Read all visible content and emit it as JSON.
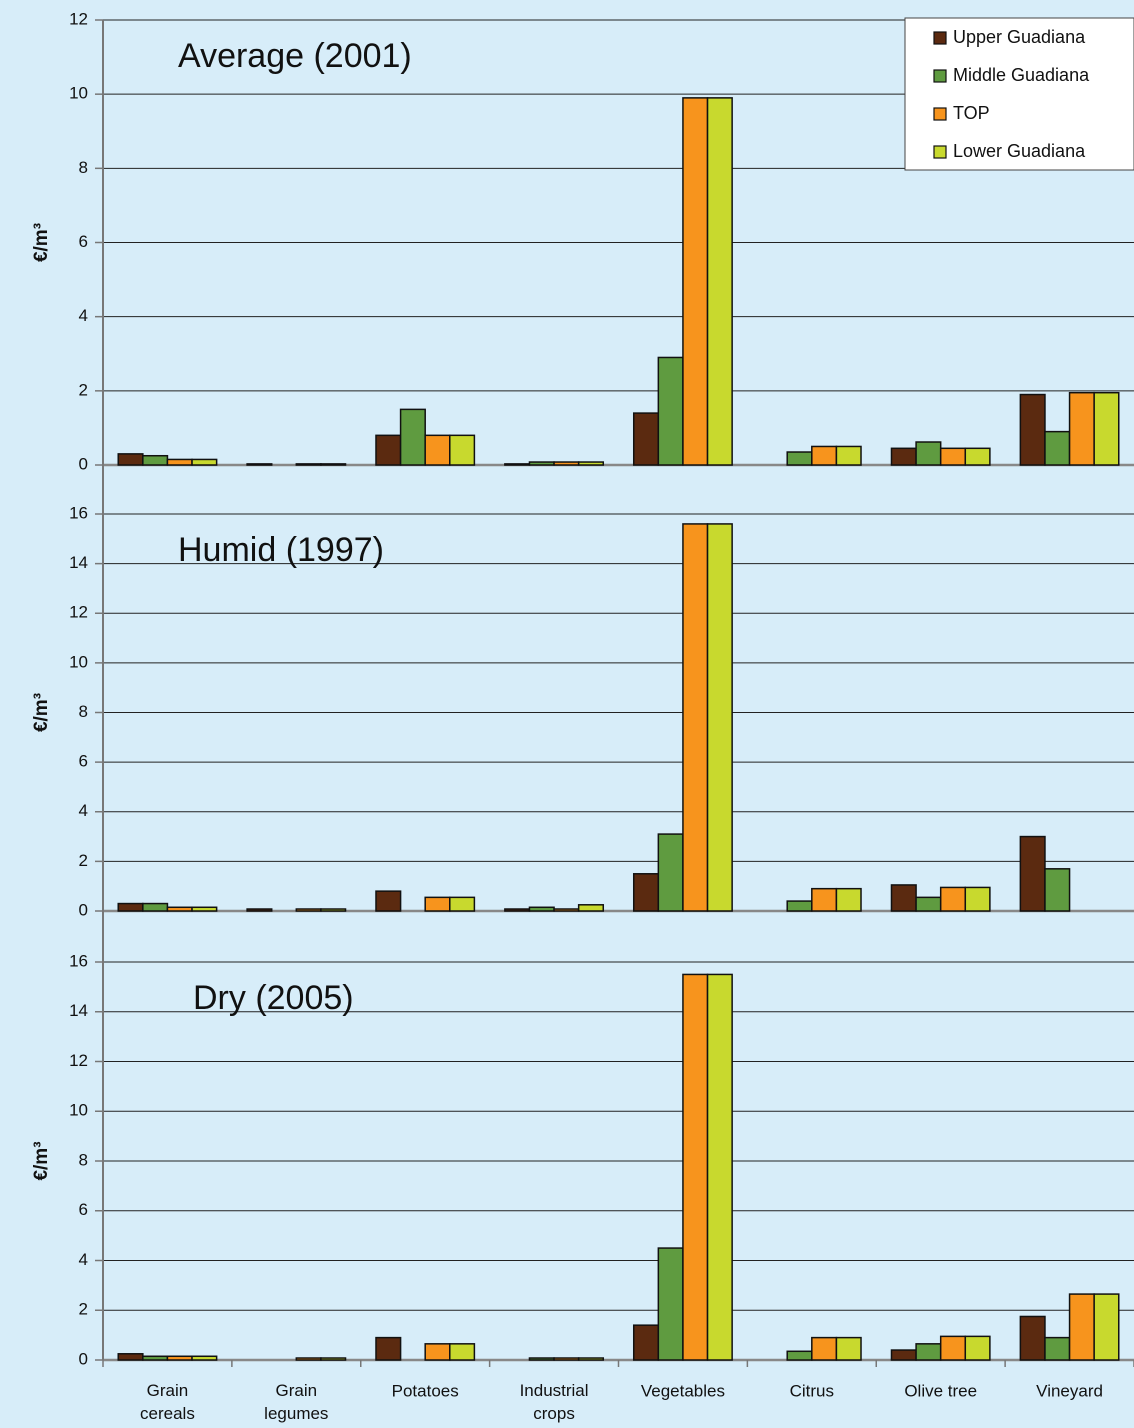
{
  "chart_data": [
    {
      "type": "bar",
      "title": "Average (2001)",
      "ylabel": "€/m³",
      "ylim": [
        0,
        12
      ],
      "yticks": [
        0,
        2,
        4,
        6,
        8,
        10,
        12
      ],
      "grid": true,
      "legend": "upper right",
      "series": [
        {
          "name": "Upper Guadiana",
          "color": "#5b2a10",
          "values": [
            0.3,
            0.03,
            0.8,
            0.03,
            1.4,
            0,
            0.45,
            1.9
          ]
        },
        {
          "name": "Middle Guadiana",
          "color": "#5f9b40",
          "values": [
            0.25,
            0,
            1.5,
            0.08,
            2.9,
            0.35,
            0.62,
            0.9
          ]
        },
        {
          "name": "TOP",
          "color": "#f7941d",
          "values": [
            0.15,
            0.03,
            0.8,
            0.08,
            9.9,
            0.5,
            0.45,
            1.95
          ]
        },
        {
          "name": "Lower Guadiana",
          "color": "#c8d92e",
          "values": [
            0.15,
            0.03,
            0.8,
            0.08,
            9.9,
            0.5,
            0.45,
            1.95
          ]
        }
      ]
    },
    {
      "type": "bar",
      "title": "Humid (1997)",
      "ylabel": "€/m³",
      "ylim": [
        0,
        16
      ],
      "yticks": [
        0,
        2,
        4,
        6,
        8,
        10,
        12,
        14,
        16
      ],
      "grid": true,
      "series": [
        {
          "color": "#5b2a10",
          "values": [
            0.3,
            0.08,
            0.8,
            0.08,
            1.5,
            0,
            1.05,
            3.0
          ]
        },
        {
          "color": "#5f9b40",
          "values": [
            0.3,
            0,
            0,
            0.15,
            3.1,
            0.4,
            0.55,
            1.7
          ]
        },
        {
          "color": "#f7941d",
          "values": [
            0.15,
            0.08,
            0.55,
            0.08,
            15.6,
            0.9,
            0.95,
            0
          ]
        },
        {
          "color": "#c8d92e",
          "values": [
            0.15,
            0.08,
            0.55,
            0.25,
            15.6,
            0.9,
            0.95,
            0
          ]
        }
      ]
    },
    {
      "type": "bar",
      "title": "Dry (2005)",
      "ylabel": "€/m³",
      "ylim": [
        0,
        16
      ],
      "yticks": [
        0,
        2,
        4,
        6,
        8,
        10,
        12,
        14,
        16
      ],
      "grid": true,
      "categories": [
        "Grain cereals",
        "Grain legumes",
        "Potatoes",
        "Industrial crops",
        "Vegetables",
        "Citrus",
        "Olive tree",
        "Vineyard"
      ],
      "series": [
        {
          "color": "#5b2a10",
          "values": [
            0.25,
            0,
            0.9,
            0,
            1.4,
            0,
            0.4,
            1.75
          ]
        },
        {
          "color": "#5f9b40",
          "values": [
            0.15,
            0,
            0,
            0.08,
            4.5,
            0.35,
            0.65,
            0.9
          ]
        },
        {
          "color": "#f7941d",
          "values": [
            0.15,
            0.08,
            0.65,
            0.08,
            15.5,
            0.9,
            0.95,
            2.65
          ]
        },
        {
          "color": "#c8d92e",
          "values": [
            0.15,
            0.08,
            0.65,
            0.08,
            15.5,
            0.9,
            0.95,
            2.65
          ]
        }
      ]
    }
  ]
}
